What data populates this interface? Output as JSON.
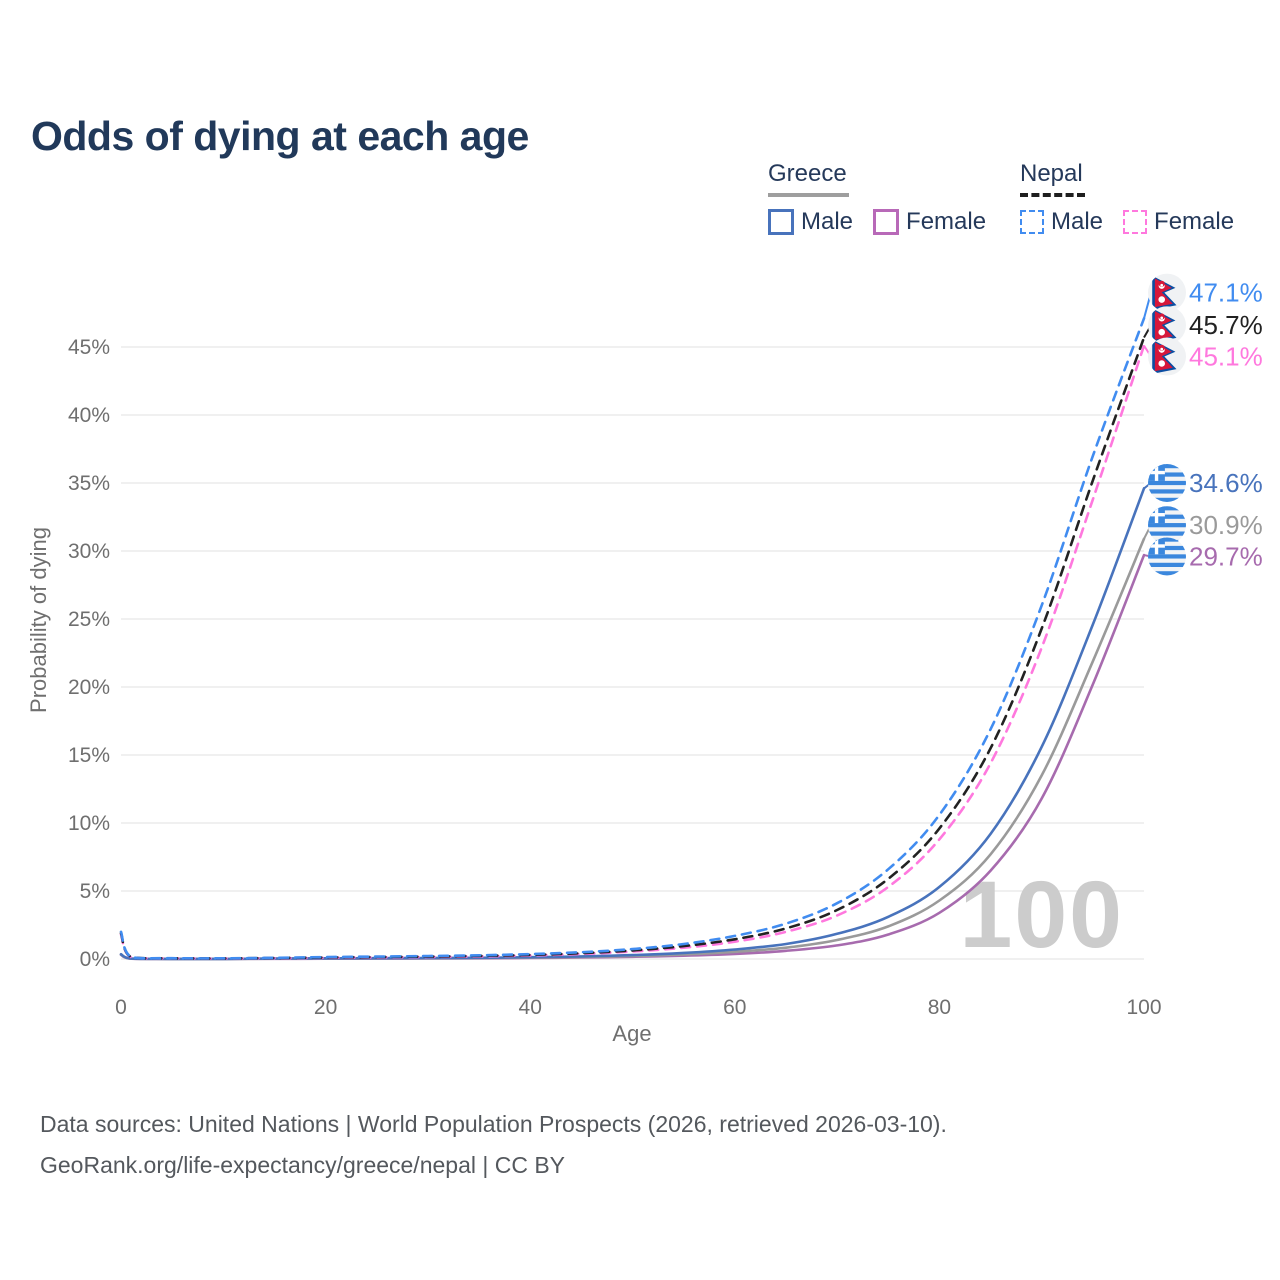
{
  "title": "Odds of dying at each age",
  "legend": {
    "groups": [
      {
        "label": "Greece",
        "key_color": "#9e9e9e",
        "key_style": "solid",
        "items": [
          {
            "label": "Male",
            "color": "#4873bc",
            "dashed": false
          },
          {
            "label": "Female",
            "color": "#b869b8",
            "dashed": false
          }
        ]
      },
      {
        "label": "Nepal",
        "key_color": "#1f1f1f",
        "key_style": "dashed",
        "items": [
          {
            "label": "Male",
            "color": "#418cf0",
            "dashed": true
          },
          {
            "label": "Female",
            "color": "#ff78de",
            "dashed": true
          }
        ]
      }
    ]
  },
  "chart_data": {
    "type": "line",
    "title": "Odds of dying at each age",
    "xlabel": "Age",
    "ylabel": "Probability of dying",
    "xlim": [
      0,
      100
    ],
    "ylim": [
      0,
      49.5
    ],
    "x_ticks": [
      0,
      20,
      40,
      60,
      80,
      100
    ],
    "y_ticks": [
      "0%",
      "5%",
      "10%",
      "15%",
      "20%",
      "25%",
      "30%",
      "35%",
      "40%",
      "45%"
    ],
    "grid": true,
    "legend_position": "top-right",
    "watermark": "100",
    "x": [
      0,
      1,
      5,
      10,
      15,
      20,
      25,
      30,
      35,
      40,
      45,
      50,
      55,
      60,
      65,
      70,
      75,
      80,
      85,
      90,
      95,
      100
    ],
    "series": [
      {
        "name": "Nepal Male",
        "country": "nepal",
        "flag": "nepal",
        "color": "#418cf0",
        "dashed": true,
        "end_label": "47.1%",
        "end_value": 47.1,
        "label_at": 49.0,
        "values": [
          2.0,
          0.15,
          0.06,
          0.05,
          0.09,
          0.14,
          0.18,
          0.22,
          0.27,
          0.36,
          0.5,
          0.73,
          1.1,
          1.7,
          2.6,
          4.1,
          6.6,
          10.6,
          16.9,
          26.0,
          37.0,
          47.1
        ]
      },
      {
        "name": "Nepal Total",
        "country": "nepal",
        "flag": "nepal",
        "color": "#222222",
        "dashed": true,
        "end_label": "45.7%",
        "end_value": 45.7,
        "label_at": 46.6,
        "values": [
          1.9,
          0.14,
          0.055,
          0.045,
          0.075,
          0.11,
          0.145,
          0.18,
          0.23,
          0.3,
          0.43,
          0.63,
          0.95,
          1.45,
          2.25,
          3.6,
          5.9,
          9.6,
          15.5,
          24.3,
          35.2,
          45.7
        ]
      },
      {
        "name": "Nepal Female",
        "country": "nepal",
        "flag": "nepal",
        "color": "#ff78de",
        "dashed": true,
        "end_label": "45.1%",
        "end_value": 45.1,
        "label_at": 44.3,
        "values": [
          1.8,
          0.13,
          0.05,
          0.04,
          0.06,
          0.09,
          0.12,
          0.15,
          0.19,
          0.26,
          0.37,
          0.55,
          0.83,
          1.27,
          2.0,
          3.2,
          5.3,
          8.8,
          14.4,
          22.9,
          33.8,
          45.1
        ]
      },
      {
        "name": "Greece Male",
        "country": "greece",
        "flag": "greece",
        "color": "#4873bc",
        "dashed": false,
        "end_label": "34.6%",
        "end_value": 34.6,
        "label_at": 35.0,
        "values": [
          0.35,
          0.03,
          0.01,
          0.01,
          0.03,
          0.05,
          0.06,
          0.07,
          0.09,
          0.13,
          0.19,
          0.29,
          0.45,
          0.7,
          1.1,
          1.85,
          3.1,
          5.3,
          9.2,
          15.6,
          24.6,
          34.6
        ]
      },
      {
        "name": "Greece Total",
        "country": "greece",
        "flag": "greece",
        "color": "#9a9a9a",
        "dashed": false,
        "end_label": "30.9%",
        "end_value": 30.9,
        "label_at": 31.9,
        "values": [
          0.33,
          0.028,
          0.009,
          0.009,
          0.022,
          0.035,
          0.045,
          0.055,
          0.07,
          0.1,
          0.15,
          0.22,
          0.34,
          0.53,
          0.83,
          1.4,
          2.4,
          4.3,
          7.7,
          13.5,
          21.9,
          30.9
        ]
      },
      {
        "name": "Greece Female",
        "country": "greece",
        "flag": "greece",
        "color": "#a76bae",
        "dashed": false,
        "end_label": "29.7%",
        "end_value": 29.7,
        "label_at": 29.6,
        "values": [
          0.3,
          0.025,
          0.008,
          0.008,
          0.015,
          0.02,
          0.027,
          0.035,
          0.05,
          0.07,
          0.11,
          0.16,
          0.24,
          0.37,
          0.6,
          1.0,
          1.8,
          3.4,
          6.5,
          11.8,
          20.2,
          29.7
        ]
      }
    ]
  },
  "footer": {
    "line1": "Data sources: United Nations | World Population Prospects (2026, retrieved 2026-03-10).",
    "line2": "GeoRank.org/life-expectancy/greece/nepal | CC BY"
  }
}
